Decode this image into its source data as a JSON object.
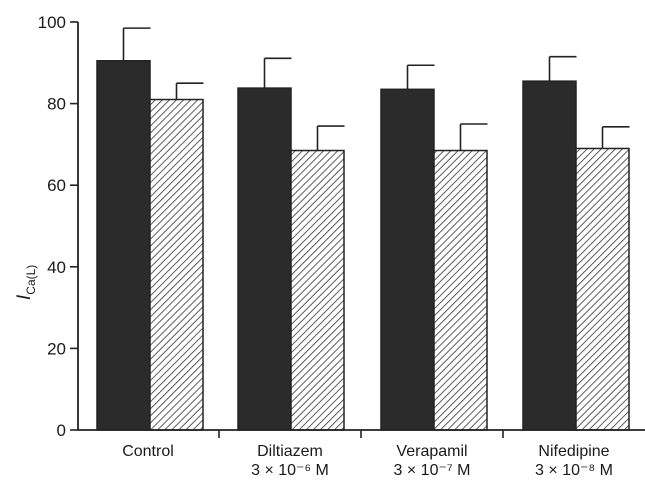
{
  "chart_data": {
    "type": "bar",
    "title": "",
    "xlabel": "",
    "ylabel": "I",
    "ylabel_subscript": "Ca(L)",
    "ylim": [
      0,
      100
    ],
    "yticks": [
      "0",
      "20",
      "40",
      "60",
      "80",
      "100"
    ],
    "categories": [
      {
        "name": "Control",
        "dose": ""
      },
      {
        "name": "Diltiazem",
        "dose": "3 × 10⁻⁶ M"
      },
      {
        "name": "Verapamil",
        "dose": "3 × 10⁻⁷ M"
      },
      {
        "name": "Nifedipine",
        "dose": "3 × 10⁻⁸ M"
      }
    ],
    "series": [
      {
        "style": "solid",
        "color": "#2b2b2b",
        "values": [
          90.5,
          83.8,
          83.5,
          85.5
        ],
        "errors": [
          8.0,
          7.3,
          5.9,
          6.0
        ]
      },
      {
        "style": "hatched",
        "color": "#ffffff",
        "values": [
          81.0,
          68.5,
          68.5,
          69.0
        ],
        "errors": [
          4.0,
          6.0,
          6.5,
          5.3
        ]
      }
    ],
    "grid": false,
    "legend": "none"
  }
}
